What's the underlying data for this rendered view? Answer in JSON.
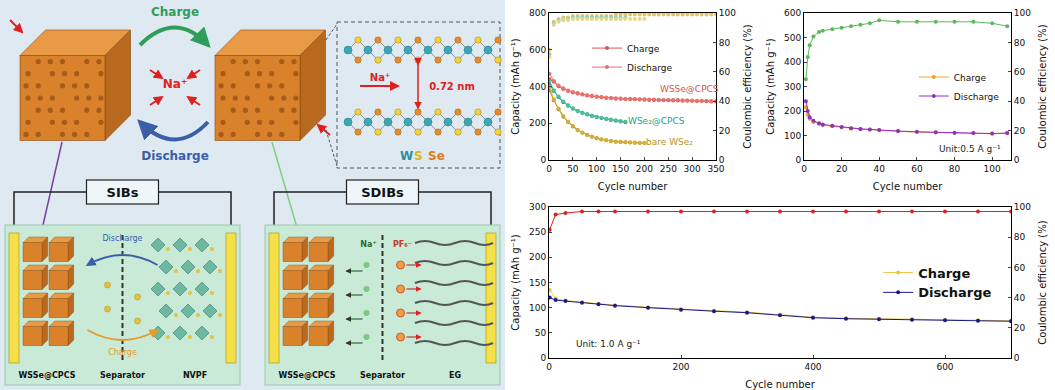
{
  "diagram": {
    "top": {
      "charge": "Charge",
      "discharge": "Discharge",
      "ion": "Na⁺"
    },
    "inset": {
      "ion": "Na⁺",
      "spacing": "0.72 nm",
      "elements": [
        "W",
        "S",
        "Se"
      ]
    },
    "cells": [
      {
        "title": "SIBs",
        "labels": [
          "WSSe@CPCS",
          "Separator",
          "NVPF"
        ],
        "arrows": [
          "Discharge",
          "Charge"
        ]
      },
      {
        "title": "SDIBs",
        "labels": [
          "WSSe@CPCS",
          "Separator",
          "EG"
        ],
        "ions": [
          "Na⁺",
          "PF₆⁻"
        ]
      }
    ]
  },
  "chart_data": [
    {
      "type": "line",
      "xlabel": "Cycle number",
      "ylabel": "Capacity (mAh g⁻¹)",
      "y2label": "Coulombic efficiency (%)",
      "xlim": [
        0,
        350
      ],
      "xticks": [
        0,
        50,
        100,
        150,
        200,
        250,
        300,
        350
      ],
      "ylim": [
        0,
        800
      ],
      "yticks": [
        0,
        200,
        400,
        600,
        800
      ],
      "y2lim": [
        0,
        100
      ],
      "y2ticks": [
        0,
        20,
        40,
        60,
        80,
        100
      ],
      "grid": false,
      "legend": "top",
      "series": [
        {
          "name": "Charge",
          "color": "#d9534f",
          "marker": "circle",
          "line_style": "solid",
          "x": [
            1,
            10,
            20,
            30,
            40,
            50,
            60,
            70,
            80,
            90,
            100,
            110,
            120,
            130,
            140,
            150,
            160,
            170,
            180,
            190,
            200,
            210,
            220,
            230,
            240,
            250,
            260,
            270,
            280,
            290,
            300,
            310,
            320,
            330,
            340,
            350
          ],
          "values": [
            440,
            426,
            402,
            387,
            376,
            368,
            362,
            356,
            351,
            347,
            344,
            341,
            338,
            336,
            334,
            333,
            332,
            331,
            330,
            329,
            328,
            327,
            327,
            326,
            325,
            325,
            324,
            324,
            323,
            323,
            322,
            321,
            321,
            320,
            319,
            318
          ]
        },
        {
          "name": "Discharge",
          "color": "#e8736e",
          "marker": "circle",
          "line_style": "solid",
          "x": [
            1,
            10,
            20,
            30,
            40,
            50,
            60,
            70,
            80,
            90,
            100,
            110,
            120,
            130,
            140,
            150,
            160,
            170,
            180,
            190,
            200,
            210,
            220,
            230,
            240,
            250,
            260,
            270,
            280,
            290,
            300,
            310,
            320,
            330,
            340,
            350
          ],
          "values": [
            470,
            430,
            405,
            390,
            378,
            370,
            364,
            358,
            353,
            349,
            346,
            343,
            340,
            338,
            336,
            335,
            334,
            333,
            332,
            331,
            330,
            329,
            329,
            328,
            327,
            327,
            326,
            326,
            325,
            325,
            324,
            323,
            323,
            322,
            321,
            320
          ]
        },
        {
          "name": "Charge",
          "color": "#2e9e7e",
          "marker": "circle",
          "line_style": "solid",
          "x": [
            1,
            10,
            20,
            30,
            40,
            50,
            60,
            70,
            80,
            90,
            100,
            110,
            120,
            130,
            140,
            150,
            160
          ],
          "values": [
            410,
            375,
            341,
            314,
            295,
            279,
            266,
            256,
            248,
            240,
            234,
            228,
            223,
            218,
            214,
            210,
            206
          ]
        },
        {
          "name": "Discharge",
          "color": "#4cbf95",
          "marker": "circle",
          "line_style": "solid",
          "x": [
            1,
            10,
            20,
            30,
            40,
            50,
            60,
            70,
            80,
            90,
            100,
            110,
            120,
            130,
            140,
            150,
            160
          ],
          "values": [
            430,
            380,
            345,
            318,
            298,
            282,
            268,
            258,
            250,
            242,
            236,
            230,
            225,
            220,
            216,
            212,
            208
          ]
        },
        {
          "name": "Charge",
          "color": "#b8921c",
          "marker": "circle",
          "line_style": "solid",
          "x": [
            1,
            10,
            20,
            30,
            40,
            50,
            60,
            70,
            80,
            90,
            100,
            110,
            120,
            130,
            140,
            150,
            160,
            170,
            180,
            190,
            200
          ],
          "values": [
            380,
            325,
            276,
            236,
            207,
            182,
            163,
            148,
            136,
            126,
            118,
            112,
            107,
            103,
            100,
            98,
            96,
            95,
            94,
            93,
            92
          ]
        },
        {
          "name": "Discharge",
          "color": "#d4ae3a",
          "marker": "circle",
          "line_style": "solid",
          "x": [
            1,
            10,
            20,
            30,
            40,
            50,
            60,
            70,
            80,
            90,
            100,
            110,
            120,
            130,
            140,
            150,
            160,
            170,
            180,
            190,
            200
          ],
          "values": [
            400,
            330,
            280,
            240,
            210,
            185,
            165,
            150,
            138,
            128,
            120,
            113,
            108,
            104,
            101,
            99,
            97,
            96,
            95,
            94,
            93
          ]
        },
        {
          "axis": "y2",
          "color": "#e6c36a",
          "marker": "circle",
          "line_style": "none",
          "x": [
            1,
            10,
            20,
            30,
            40,
            50,
            60,
            70,
            80,
            90,
            100,
            110,
            120,
            130,
            140,
            150,
            160,
            170,
            180,
            190,
            200,
            210,
            220,
            230,
            240,
            250,
            260,
            270,
            280,
            290,
            300,
            310,
            320,
            330,
            340,
            350
          ],
          "values": [
            75,
            94,
            96,
            97,
            97,
            98,
            98,
            98,
            98,
            98,
            98,
            98,
            98,
            98,
            99,
            99,
            99,
            99,
            99,
            99,
            99,
            99,
            99,
            99,
            99,
            99,
            99,
            99,
            99,
            99,
            99,
            99,
            99,
            99,
            99,
            99
          ]
        },
        {
          "axis": "y2",
          "color": "#8fd0b0",
          "marker": "circle",
          "line_style": "none",
          "x": [
            1,
            10,
            20,
            30,
            40,
            50,
            60,
            70,
            80,
            90,
            100,
            110,
            120,
            130,
            140,
            150,
            160
          ],
          "values": [
            72,
            93,
            95,
            96,
            96,
            97,
            97,
            97,
            97,
            97,
            97,
            97,
            97,
            97,
            97,
            97,
            97
          ]
        },
        {
          "axis": "y2",
          "color": "#e9d58a",
          "marker": "circle",
          "line_style": "none",
          "x": [
            1,
            10,
            20,
            30,
            40,
            50,
            60,
            70,
            80,
            90,
            100,
            110,
            120,
            130,
            140,
            150,
            160,
            170,
            180,
            190,
            200
          ],
          "values": [
            70,
            92,
            94,
            95,
            95,
            96,
            96,
            96,
            96,
            96,
            96,
            96,
            96,
            96,
            96,
            96,
            96,
            96,
            96,
            96,
            96
          ]
        }
      ],
      "annotations": [
        {
          "text": "WSSe@CPCS",
          "x": 295,
          "y": 385,
          "color": "#d9534f"
        },
        {
          "text": "WSe₂@CPCS",
          "x": 225,
          "y": 210,
          "color": "#2e9e7e"
        },
        {
          "text": "bare WSe₂",
          "x": 252,
          "y": 100,
          "color": "#b8921c"
        }
      ]
    },
    {
      "type": "line",
      "xlabel": "Cycle number",
      "ylabel": "Capacity (mAh g⁻¹)",
      "y2label": "Coulombic efficiency (%)",
      "xlim": [
        0,
        110
      ],
      "xticks": [
        0,
        20,
        40,
        60,
        80,
        100
      ],
      "ylim": [
        0,
        600
      ],
      "yticks": [
        0,
        100,
        200,
        300,
        400,
        500,
        600
      ],
      "y2lim": [
        0,
        100
      ],
      "y2ticks": [
        0,
        20,
        40,
        60,
        80,
        100
      ],
      "grid": false,
      "legend": "right",
      "series": [
        {
          "name": "Charge",
          "color": "#f0a030",
          "marker": "circle",
          "line_style": "solid",
          "x": [
            1,
            2,
            3,
            5,
            8,
            10,
            15,
            20,
            25,
            30,
            35,
            40,
            50,
            60,
            70,
            80,
            90,
            100,
            108
          ],
          "values": [
            215,
            185,
            168,
            155,
            147,
            142,
            138,
            133,
            129,
            126,
            124,
            121,
            117,
            114,
            112,
            110,
            109,
            107,
            109
          ]
        },
        {
          "name": "Discharge",
          "color": "#9030c0",
          "marker": "circle",
          "line_style": "solid",
          "x": [
            1,
            2,
            3,
            5,
            8,
            10,
            15,
            20,
            25,
            30,
            35,
            40,
            50,
            60,
            70,
            80,
            90,
            100,
            108
          ],
          "values": [
            240,
            200,
            175,
            160,
            150,
            145,
            140,
            135,
            130,
            127,
            125,
            122,
            118,
            115,
            113,
            111,
            110,
            108,
            110
          ]
        },
        {
          "axis": "y2",
          "color": "#5cb85c",
          "marker": "circle",
          "line_style": "solid",
          "x": [
            1,
            2,
            3,
            5,
            8,
            10,
            15,
            20,
            25,
            30,
            35,
            40,
            50,
            60,
            70,
            80,
            90,
            100,
            108
          ],
          "values": [
            55,
            70,
            78,
            84,
            87,
            88,
            89,
            90,
            91,
            92,
            93,
            95,
            94,
            94,
            94,
            94,
            94,
            93,
            91
          ]
        }
      ],
      "annotations": [
        {
          "text": "Unit:0.5 A g⁻¹",
          "x": 88,
          "y": 45,
          "color": "#222222"
        }
      ]
    },
    {
      "type": "line",
      "xlabel": "Cycle number",
      "ylabel": "Capacity (mAh g⁻¹)",
      "y2label": "Coulombic efficiency (%)",
      "xlim": [
        0,
        700
      ],
      "xticks": [
        0,
        200,
        400,
        600
      ],
      "ylim": [
        0,
        300
      ],
      "yticks": [
        0,
        50,
        100,
        150,
        200,
        250,
        300
      ],
      "y2lim": [
        0,
        100
      ],
      "y2ticks": [
        0,
        20,
        40,
        60,
        80,
        100
      ],
      "grid": false,
      "legend": "right",
      "series": [
        {
          "name": "Charge",
          "color": "#f0c040",
          "marker": "circle",
          "line_style": "solid",
          "x": [
            1,
            10,
            25,
            50,
            75,
            100,
            150,
            200,
            250,
            300,
            350,
            400,
            450,
            500,
            550,
            600,
            650,
            700
          ],
          "values": [
            135,
            118,
            114,
            111,
            108,
            105,
            101,
            97,
            94,
            91,
            86,
            81,
            79,
            78,
            77,
            76,
            75,
            74
          ]
        },
        {
          "name": "Discharge",
          "color": "#1a1a8a",
          "marker": "circle",
          "line_style": "solid",
          "x": [
            1,
            10,
            25,
            50,
            75,
            100,
            150,
            200,
            250,
            300,
            350,
            400,
            450,
            500,
            550,
            600,
            650,
            700
          ],
          "values": [
            120,
            115,
            113,
            110,
            107,
            104,
            100,
            96,
            93,
            90,
            85,
            80,
            78,
            77,
            76,
            75,
            74,
            73
          ]
        },
        {
          "axis": "y2",
          "color": "#e02020",
          "marker": "circle",
          "line_style": "solid",
          "x": [
            1,
            10,
            25,
            50,
            75,
            100,
            150,
            200,
            250,
            300,
            350,
            400,
            450,
            500,
            550,
            600,
            650,
            700
          ],
          "values": [
            85,
            95,
            96,
            97,
            97,
            97,
            97,
            97,
            97,
            97,
            97,
            97,
            97,
            97,
            97,
            97,
            97,
            97
          ]
        }
      ],
      "annotations": [
        {
          "text": "Unit: 1.0 A g⁻¹",
          "x": 90,
          "y": 28,
          "color": "#222222"
        }
      ]
    }
  ]
}
